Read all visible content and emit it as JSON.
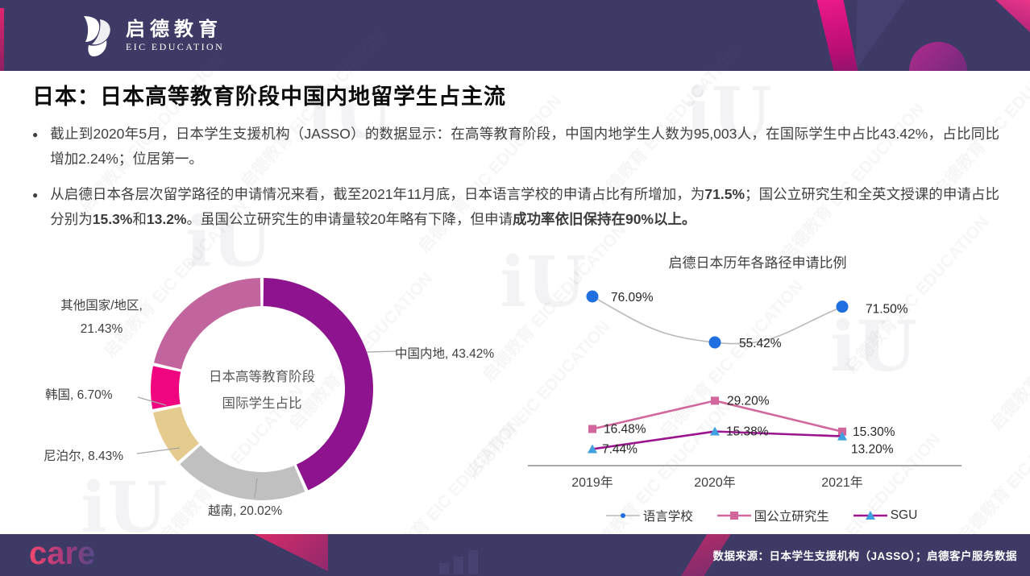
{
  "header": {
    "brand_cn": "启德教育",
    "brand_en": "EIC EDUCATION"
  },
  "slide": {
    "title": "日本：日本高等教育阶段中国内地留学生占主流",
    "bullet_marker": "●",
    "bullets": [
      {
        "segments": [
          {
            "text": "截止到2020年5月，日本学生支援机构（JASSO）的数据显示：在高等教育阶段，中国内地学生人数为95,003人，在国际学生中占比43.42%，占比同比增加2.24%；位居第一。",
            "bold": false
          }
        ]
      },
      {
        "segments": [
          {
            "text": "从启德日本各层次留学路径的申请情况来看，截至2021年11月底，日本语言学校的申请占比有所增加，为",
            "bold": false
          },
          {
            "text": "71.5%",
            "bold": true
          },
          {
            "text": "；国公立研究生和全英文授课的申请占比分别为",
            "bold": false
          },
          {
            "text": "15.3%",
            "bold": true
          },
          {
            "text": "和",
            "bold": false
          },
          {
            "text": "13.2%",
            "bold": true
          },
          {
            "text": "。虽国公立研究生的申请量较20年略有下降，但申请",
            "bold": false
          },
          {
            "text": "成功率依旧保持在90%以上。",
            "bold": true
          }
        ]
      }
    ]
  },
  "chart_data": [
    {
      "type": "pie",
      "donut": true,
      "title": "日本高等教育阶段国际学生占比",
      "center_label_line1": "日本高等教育阶段",
      "center_label_line2": "国际学生占比",
      "labels": [
        "中国内地",
        "越南",
        "尼泊尔",
        "韩国",
        "其他国家/地区"
      ],
      "values": [
        43.42,
        20.02,
        8.43,
        6.7,
        21.43
      ],
      "colors": [
        "#8e138e",
        "#c1c0c0",
        "#e5cb8e",
        "#f10480",
        "#c2649e"
      ],
      "start_angle_deg": 0,
      "direction": "clockwise"
    },
    {
      "type": "line",
      "title": "启德日本历年各路径申请比例",
      "categories": [
        "2019年",
        "2020年",
        "2021年"
      ],
      "series": [
        {
          "name": "语言学校",
          "values": [
            76.09,
            55.42,
            71.5
          ],
          "line_color": "#b9b9b9",
          "marker": "circle",
          "marker_color": "#1f6fe0",
          "smooth": true
        },
        {
          "name": "国公立研究生",
          "values": [
            16.48,
            29.2,
            15.3
          ],
          "line_color": "#d2679e",
          "marker": "square",
          "marker_color": "#d2679e",
          "smooth": false
        },
        {
          "name": "SGU",
          "values": [
            7.44,
            15.38,
            13.2
          ],
          "line_color": "#9c1490",
          "marker": "triangle",
          "marker_color": "#41a0e0",
          "smooth": false
        }
      ],
      "ylim": [
        0,
        86
      ],
      "grid": false,
      "legend_position": "bottom",
      "axis_color": "#a9a9a9",
      "label_color": "#262626"
    }
  ],
  "footer": {
    "care_logo": "care",
    "source_text": "数据来源：日本学生支援机构（JASSO）；启德客户服务数据"
  },
  "watermark": {
    "text": "启德教育 EIC EDUCATION",
    "iu_glyph": "iU"
  },
  "colors": {
    "header_bg": "#3d3a66",
    "footer_bg": "#3d3a66",
    "accent_magenta": "#ef1a8b",
    "body_text": "#404040"
  }
}
